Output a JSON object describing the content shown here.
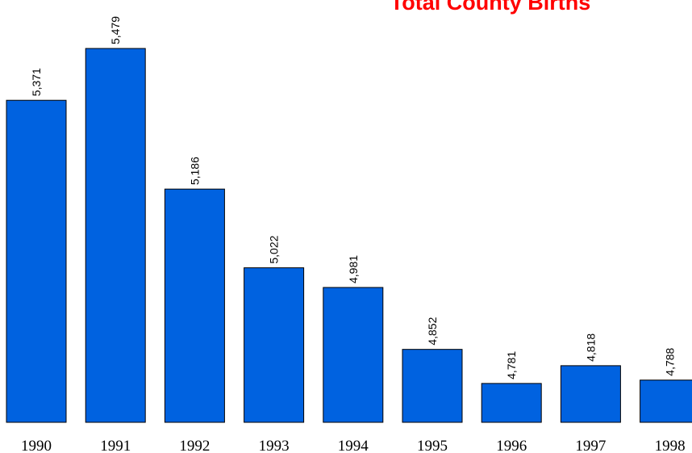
{
  "chart_data": {
    "type": "bar",
    "title": "Total County Births",
    "categories": [
      "1990",
      "1991",
      "1992",
      "1993",
      "1994",
      "1995",
      "1996",
      "1997",
      "1998"
    ],
    "values": [
      5371,
      5479,
      5186,
      5022,
      4981,
      4852,
      4781,
      4818,
      4788
    ],
    "value_labels": [
      "5,371",
      "5,479",
      "5,186",
      "5,022",
      "4,981",
      "4,852",
      "4,781",
      "4,818",
      "4,788"
    ],
    "color": "#0062e0",
    "ylim": [
      4700,
      5580
    ]
  }
}
